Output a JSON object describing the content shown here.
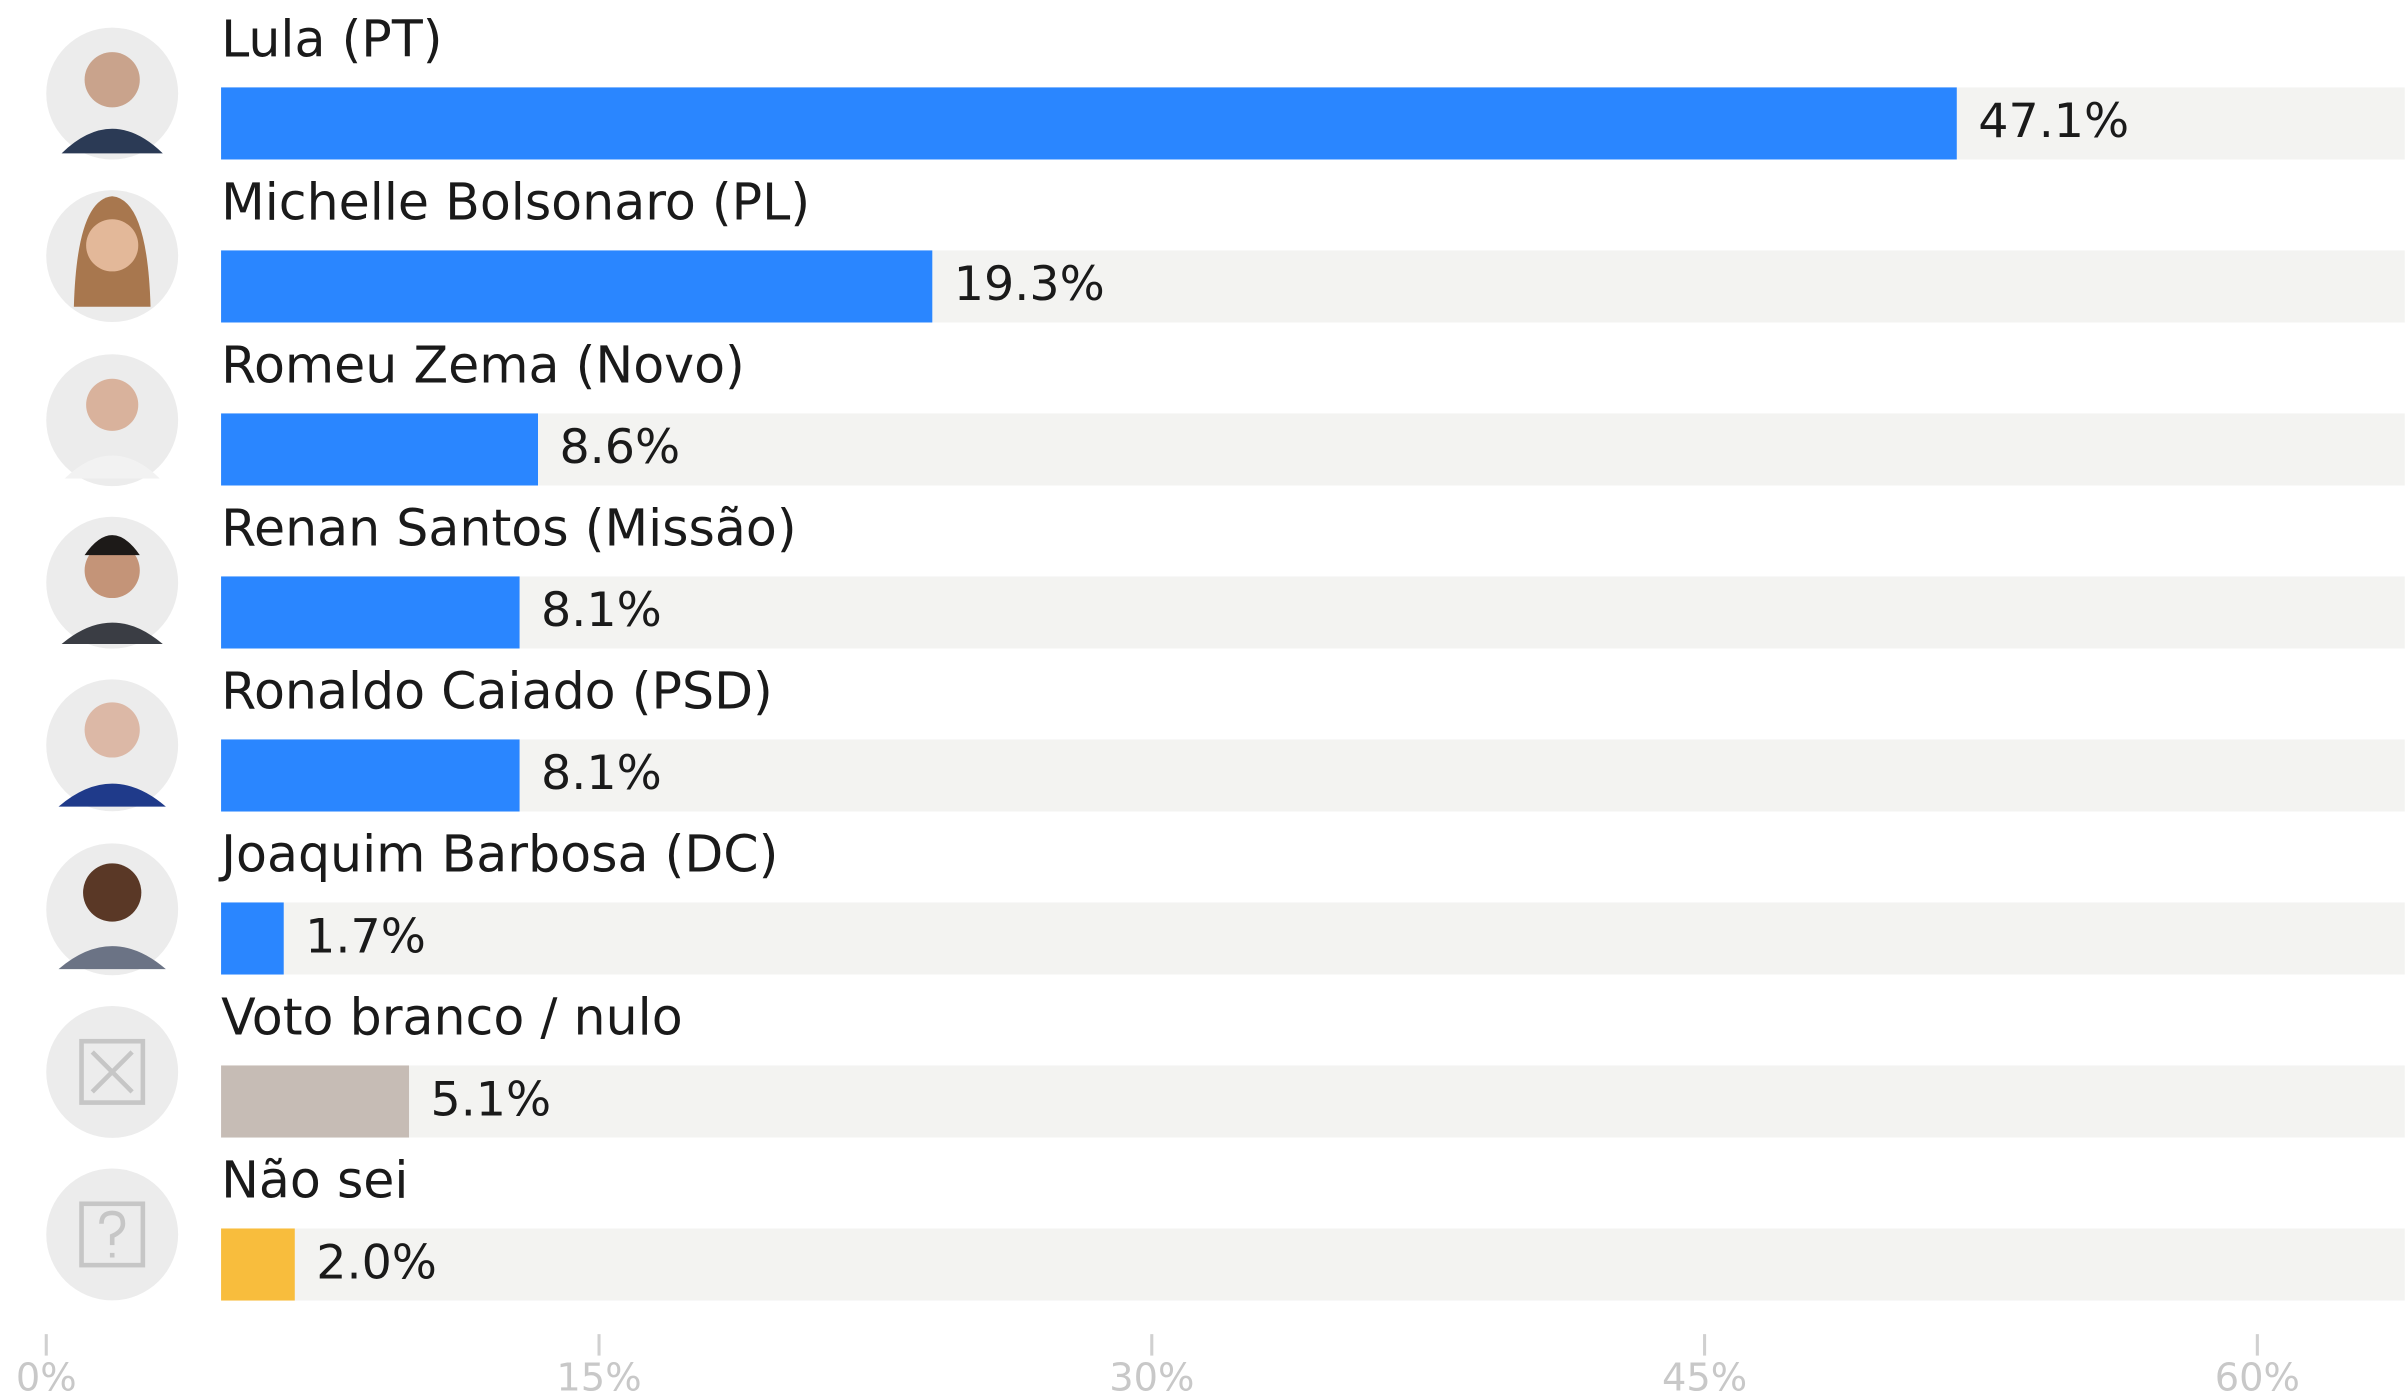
{
  "chart_data": {
    "type": "bar",
    "categories": [
      "Lula (PT)",
      "Michelle Bolsonaro (PL)",
      "Romeu Zema (Novo)",
      "Renan Santos (Missão)",
      "Ronaldo Caiado (PSD)",
      "Joaquim Barbosa (DC)",
      "Voto branco / nulo",
      "Não sei"
    ],
    "values": [
      47.1,
      19.3,
      8.6,
      8.1,
      8.1,
      1.7,
      5.1,
      2.0
    ],
    "value_labels": [
      "47.1%",
      "19.3%",
      "8.6%",
      "8.1%",
      "8.1%",
      "1.7%",
      "5.1%",
      "2.0%"
    ],
    "colors": [
      "#2a86ff",
      "#2a86ff",
      "#2a86ff",
      "#2a86ff",
      "#2a86ff",
      "#2a86ff",
      "#c6bcb5",
      "#f8bd3d"
    ],
    "xlim": [
      0,
      64
    ],
    "xticks": [
      {
        "value": 0,
        "label": "0%"
      },
      {
        "value": 15,
        "label": "15%"
      },
      {
        "value": 30,
        "label": "30%"
      },
      {
        "value": 45,
        "label": "45%"
      },
      {
        "value": 60,
        "label": "60%"
      }
    ]
  }
}
